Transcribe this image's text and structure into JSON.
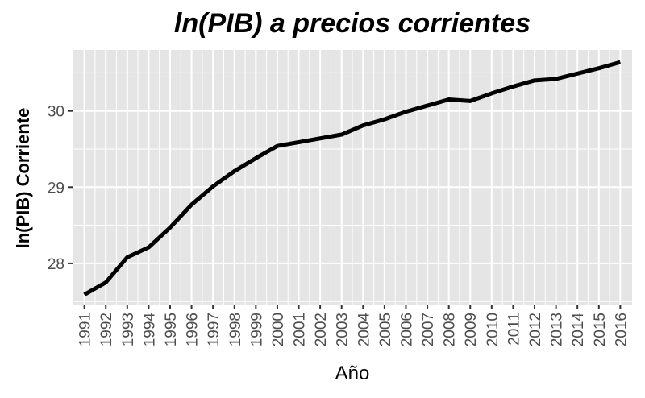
{
  "chart_data": {
    "type": "line",
    "title": "ln(PIB) a precios corrientes",
    "xlabel": "Año",
    "ylabel": "ln(PIB) Corriente",
    "x": [
      1991,
      1992,
      1993,
      1994,
      1995,
      1996,
      1997,
      1998,
      1999,
      2000,
      2001,
      2002,
      2003,
      2004,
      2005,
      2006,
      2007,
      2008,
      2009,
      2010,
      2011,
      2012,
      2013,
      2014,
      2015,
      2016
    ],
    "xticks": [
      "1991",
      "1992",
      "1993",
      "1994",
      "1995",
      "1996",
      "1997",
      "1998",
      "1999",
      "2000",
      "2001",
      "2002",
      "2003",
      "2004",
      "2005",
      "2006",
      "2007",
      "2008",
      "2009",
      "2010",
      "2011",
      "2012",
      "2013",
      "2014",
      "2015",
      "2016"
    ],
    "yticks": [
      28,
      29,
      30
    ],
    "ylim": [
      27.46,
      30.8
    ],
    "xlim": [
      1990.45,
      2016.55
    ],
    "series": [
      {
        "values": [
          27.59,
          27.75,
          28.08,
          28.21,
          28.47,
          28.77,
          29.01,
          29.21,
          29.38,
          29.54,
          29.59,
          29.64,
          29.69,
          29.81,
          29.89,
          29.99,
          30.07,
          30.15,
          30.13,
          30.23,
          30.32,
          30.4,
          30.42,
          30.49,
          30.56,
          30.64
        ]
      }
    ],
    "grid": true,
    "legend": "none",
    "colors": {
      "panel": "#e5e5e5",
      "grid": "#ffffff",
      "line": "#000000"
    }
  }
}
